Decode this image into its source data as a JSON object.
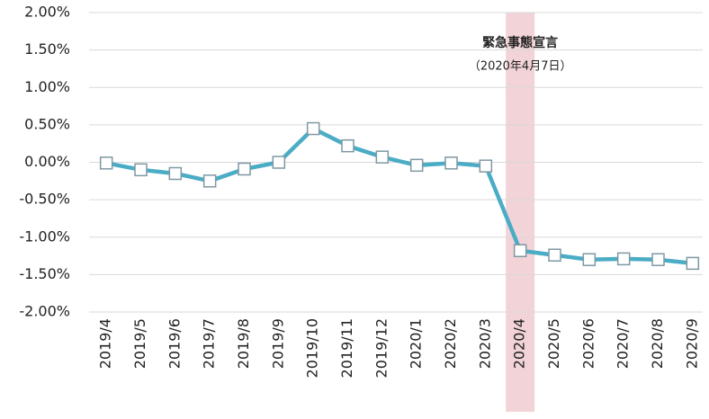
{
  "chart_data": {
    "type": "line",
    "categories": [
      "2019/4",
      "2019/5",
      "2019/6",
      "2019/7",
      "2019/8",
      "2019/9",
      "2019/10",
      "2019/11",
      "2019/12",
      "2020/1",
      "2020/2",
      "2020/3",
      "2020/4",
      "2020/5",
      "2020/6",
      "2020/7",
      "2020/8",
      "2020/9"
    ],
    "values": [
      -0.01,
      -0.1,
      -0.15,
      -0.25,
      -0.09,
      0.0,
      0.45,
      0.22,
      0.07,
      -0.04,
      -0.01,
      -0.05,
      -1.18,
      -1.24,
      -1.3,
      -1.29,
      -1.3,
      -1.35
    ],
    "color": "#4bacc6",
    "marker_color": "#7f98a3",
    "ylim": [
      -2,
      2
    ],
    "yticks": [
      {
        "value": -2,
        "label": "-2.00%"
      },
      {
        "value": -1.5,
        "label": "-1.50%"
      },
      {
        "value": -1,
        "label": "-1.00%"
      },
      {
        "value": -0.5,
        "label": "-0.50%"
      },
      {
        "value": 0,
        "label": "0.00%"
      },
      {
        "value": 0.5,
        "label": "0.50%"
      },
      {
        "value": 1,
        "label": "1.00%"
      },
      {
        "value": 1.5,
        "label": "1.50%"
      },
      {
        "value": 2,
        "label": "2.00%"
      }
    ],
    "grid": true,
    "annotation": {
      "category": "2020/4",
      "lines": [
        "緊急事態宣言",
        "（2020年4月7日）"
      ],
      "band_color": "#f2d3d7"
    }
  }
}
